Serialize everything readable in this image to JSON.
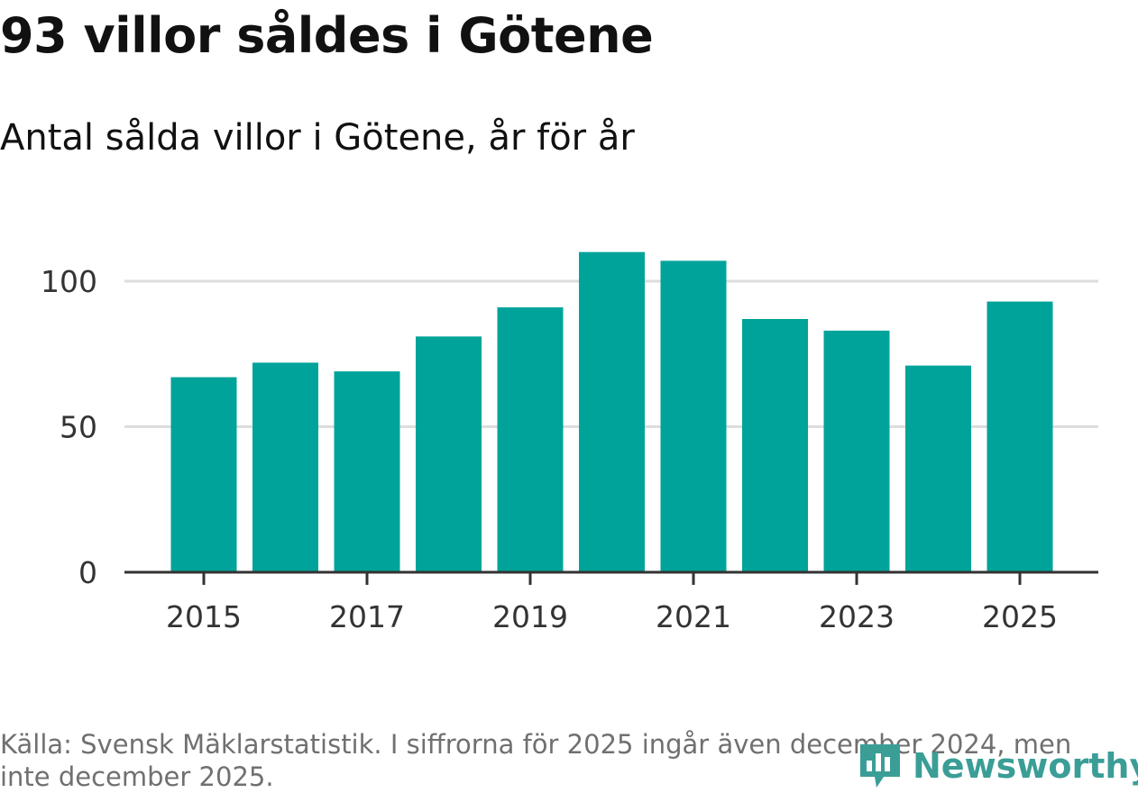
{
  "chart_data": {
    "type": "bar",
    "title": "93 villor såldes i Götene",
    "subtitle": "Antal sålda villor i Götene, år för år",
    "categories": [
      "2015",
      "2016",
      "2017",
      "2018",
      "2019",
      "2020",
      "2021",
      "2022",
      "2023",
      "2024",
      "2025"
    ],
    "values": [
      67,
      72,
      69,
      81,
      91,
      110,
      107,
      87,
      83,
      71,
      93
    ],
    "xticks": [
      "2015",
      "2017",
      "2019",
      "2021",
      "2023",
      "2025"
    ],
    "yticks": [
      0,
      50,
      100
    ],
    "ylim": [
      0,
      115
    ],
    "xlabel": "",
    "ylabel": "",
    "bar_color": "#00a39a",
    "grid": true
  },
  "footer": {
    "source": "Källa: Svensk Mäklarstatistik. I siffrorna för 2025 ingår även december 2024, men inte december 2025."
  },
  "logo": {
    "text": "Newsworthy",
    "color": "#3a9e97"
  }
}
